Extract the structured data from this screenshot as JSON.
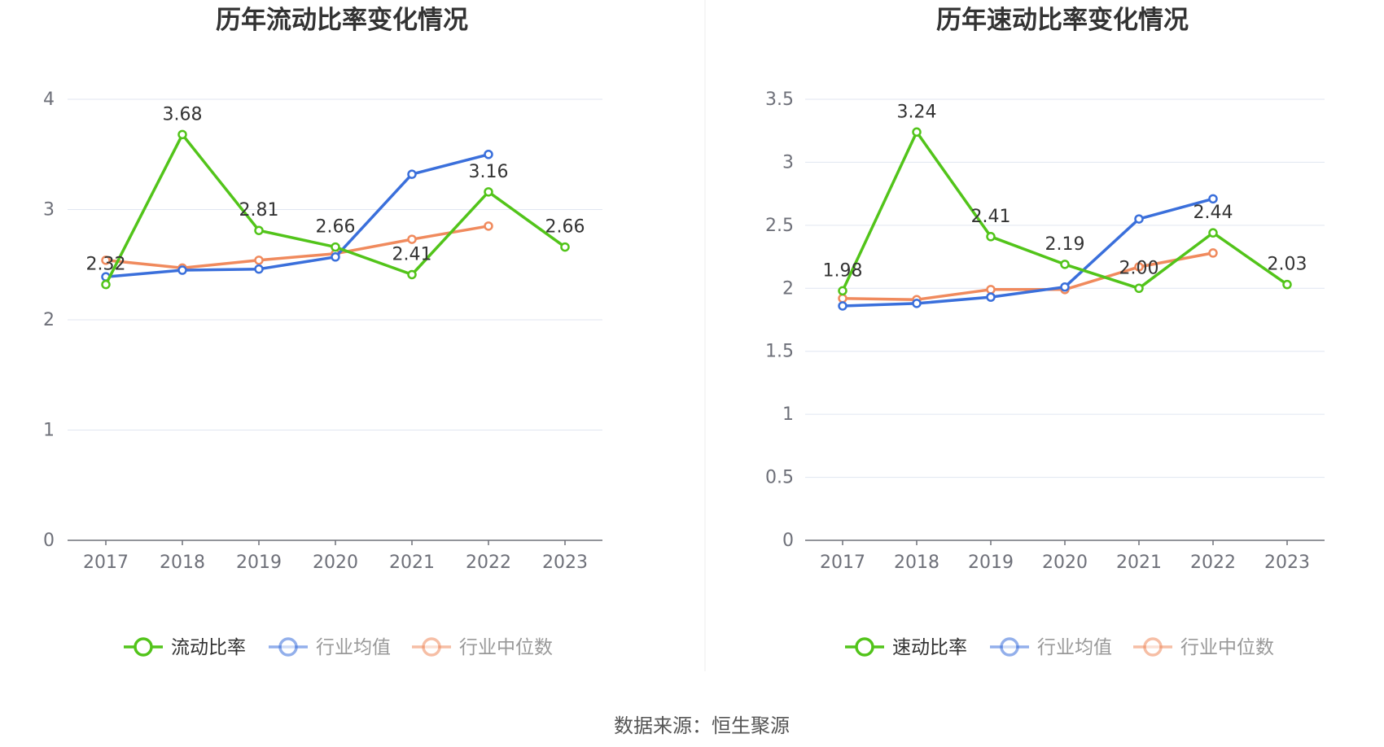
{
  "colors": {
    "primary": "#52c41a",
    "avg": "#3a6fdb",
    "median": "#f08a5d",
    "grid": "#e0e6f1",
    "axis": "#6e7079",
    "legend_inactive_text": "#999999",
    "legend_active_text": "#333333"
  },
  "source": "数据来源：恒生聚源",
  "chart_data": [
    {
      "type": "line",
      "title": "历年流动比率变化情况",
      "x": [
        "2017",
        "2018",
        "2019",
        "2020",
        "2021",
        "2022",
        "2023"
      ],
      "ylim": [
        0,
        4
      ],
      "yticks": [
        0,
        1,
        2,
        3,
        4
      ],
      "ytick_labels": [
        "0",
        "1",
        "2",
        "3",
        "4"
      ],
      "grid": true,
      "legend_position": "bottom",
      "series": [
        {
          "name": "流动比率",
          "key": "primary",
          "values": [
            2.32,
            3.68,
            2.81,
            2.66,
            2.41,
            3.16,
            2.66
          ],
          "labels": [
            "2.32",
            "3.68",
            "2.81",
            "2.66",
            "2.41",
            "3.16",
            "2.66"
          ]
        },
        {
          "name": "行业均值",
          "key": "avg",
          "values": [
            2.39,
            2.45,
            2.46,
            2.57,
            3.32,
            3.5,
            null
          ]
        },
        {
          "name": "行业中位数",
          "key": "median",
          "values": [
            2.54,
            2.47,
            2.54,
            2.6,
            2.73,
            2.85,
            null
          ]
        }
      ]
    },
    {
      "type": "line",
      "title": "历年速动比率变化情况",
      "x": [
        "2017",
        "2018",
        "2019",
        "2020",
        "2021",
        "2022",
        "2023"
      ],
      "ylim": [
        0,
        3.5
      ],
      "yticks": [
        0,
        0.5,
        1,
        1.5,
        2,
        2.5,
        3,
        3.5
      ],
      "ytick_labels": [
        "0",
        "0.5",
        "1",
        "1.5",
        "2",
        "2.5",
        "3",
        "3.5"
      ],
      "grid": true,
      "legend_position": "bottom",
      "series": [
        {
          "name": "速动比率",
          "key": "primary",
          "values": [
            1.98,
            3.24,
            2.41,
            2.19,
            2.0,
            2.44,
            2.03
          ],
          "labels": [
            "1.98",
            "3.24",
            "2.41",
            "2.19",
            "2.00",
            "2.44",
            "2.03"
          ]
        },
        {
          "name": "行业均值",
          "key": "avg",
          "values": [
            1.86,
            1.88,
            1.93,
            2.01,
            2.55,
            2.71,
            null
          ]
        },
        {
          "name": "行业中位数",
          "key": "median",
          "values": [
            1.92,
            1.91,
            1.99,
            1.99,
            2.17,
            2.28,
            null
          ]
        }
      ]
    }
  ]
}
